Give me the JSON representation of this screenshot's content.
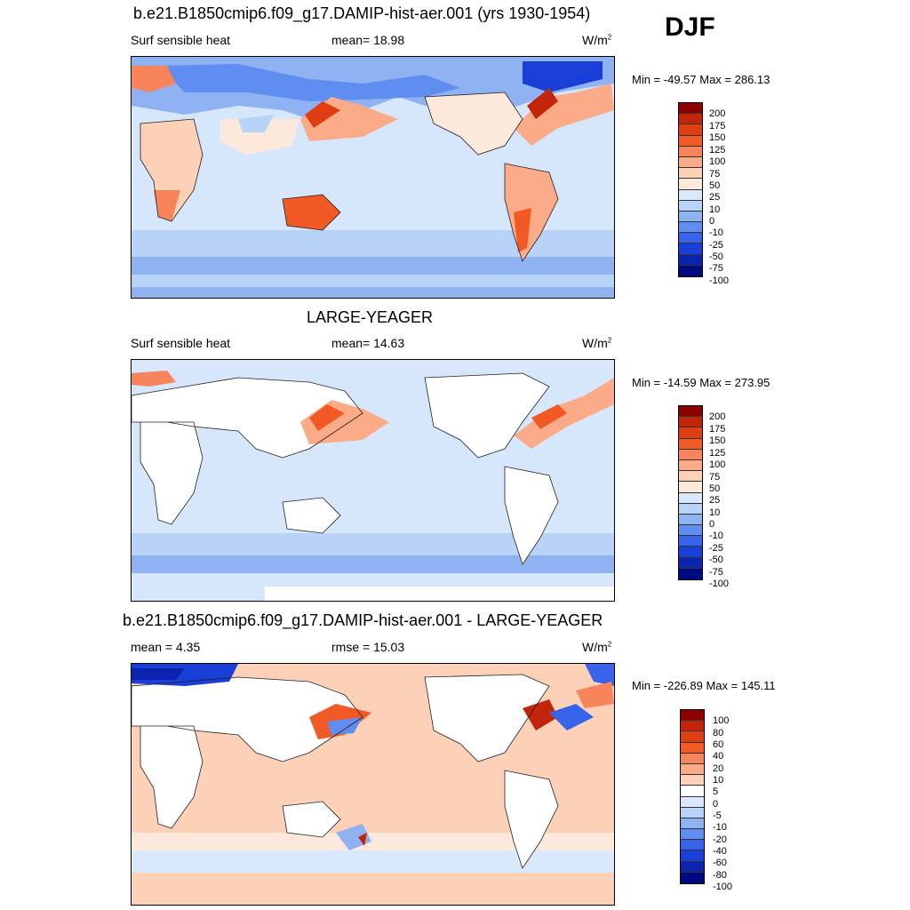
{
  "season_label": "DJF",
  "colors": {
    "abs_scale": [
      "#8b0000",
      "#c1260a",
      "#e03e12",
      "#f15a24",
      "#f8845c",
      "#fbab88",
      "#fdd1b8",
      "#fde9dc",
      "#d9e8fb",
      "#b8d2f8",
      "#8fb3f2",
      "#5f8df0",
      "#3764ea",
      "#1a3fd8",
      "#0a24b0",
      "#000a80"
    ],
    "diff_scale": [
      "#8b0000",
      "#c1260a",
      "#e03e12",
      "#f15a24",
      "#f8845c",
      "#fbab88",
      "#fdd1b8",
      "#ffffff",
      "#d9e8fb",
      "#b8d2f8",
      "#8fb3f2",
      "#5f8df0",
      "#3764ea",
      "#1a3fd8",
      "#0a24b0",
      "#000a80"
    ],
    "land_white": "#ffffff",
    "ocean_light_blue": "#d6e6fb"
  },
  "panels": [
    {
      "title": "b.e21.B1850cmip6.f09_g17.DAMIP-hist-aer.001 (yrs 1930-1954)",
      "left_label": "Surf sensible heat",
      "center_label": "mean=  18.98",
      "units_base": "W/m",
      "units_exp": "2",
      "minmax": "Min = -49.57 Max = 286.13",
      "colorbar_labels": [
        "200",
        "175",
        "150",
        "125",
        "100",
        "75",
        "50",
        "25",
        "10",
        "0",
        "-10",
        "-25",
        "-50",
        "-75",
        "-100"
      ]
    },
    {
      "title": "LARGE-YEAGER",
      "left_label": "Surf sensible heat",
      "center_label": "mean=  14.63",
      "units_base": "W/m",
      "units_exp": "2",
      "minmax": "Min = -14.59 Max = 273.95",
      "colorbar_labels": [
        "200",
        "175",
        "150",
        "125",
        "100",
        "75",
        "50",
        "25",
        "10",
        "0",
        "-10",
        "-25",
        "-50",
        "-75",
        "-100"
      ]
    },
    {
      "title": "b.e21.B1850cmip6.f09_g17.DAMIP-hist-aer.001 - LARGE-YEAGER",
      "left_label": "mean =   4.35",
      "center_label": "rmse =  15.03",
      "units_base": "W/m",
      "units_exp": "2",
      "minmax": "Min = -226.89 Max = 145.11",
      "colorbar_labels": [
        "100",
        "80",
        "60",
        "40",
        "20",
        "10",
        "5",
        "0",
        "-5",
        "-10",
        "-20",
        "-40",
        "-60",
        "-80",
        "-100"
      ]
    }
  ]
}
